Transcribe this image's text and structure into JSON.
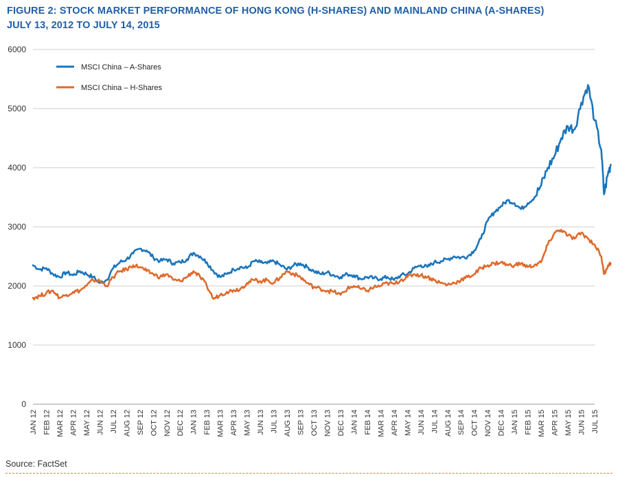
{
  "header": {
    "title_line1": "FIGURE 2: STOCK MARKET PERFORMANCE OF HONG KONG (H-SHARES) AND MAINLAND CHINA (A-SHARES)",
    "title_line2": "JULY 13, 2012 TO JULY 14, 2015"
  },
  "footer": {
    "source": "Source: FactSet"
  },
  "colors": {
    "a_shares": "#1b75bb",
    "h_shares": "#de6b2b",
    "grid": "#cccccc",
    "title": "#1f5fa6"
  },
  "chart_data": {
    "type": "line",
    "title": "FIGURE 2: STOCK MARKET PERFORMANCE OF HONG KONG (H-SHARES) AND MAINLAND CHINA (A-SHARES)",
    "subtitle": "JULY 13, 2012 TO JULY 14, 2015",
    "xlabel": "",
    "ylabel": "",
    "ylim": [
      0,
      6000
    ],
    "yticks": [
      0,
      1000,
      2000,
      3000,
      4000,
      5000,
      6000
    ],
    "grid": true,
    "legend_position": "top-left",
    "categories": [
      "JAN 12",
      "FEB 12",
      "MAR 12",
      "APR 12",
      "MAY 12",
      "JUN 12",
      "JUL 12",
      "AUG 12",
      "SEP 12",
      "OCT 12",
      "NOV 12",
      "DEC 12",
      "JAN 13",
      "FEB 13",
      "MAR 13",
      "APR 13",
      "MAY 13",
      "JUN 13",
      "JUL 13",
      "AUG 13",
      "SEP 13",
      "OCT 13",
      "NOV 13",
      "DEC 13",
      "JAN 14",
      "FEB 14",
      "MAR 14",
      "APR 14",
      "MAY 14",
      "JUN 14",
      "JUL 14",
      "AUG 14",
      "SEP 14",
      "OCT 14",
      "NOV 14",
      "DEC 14",
      "JAN 15",
      "FEB 15",
      "MAR 15",
      "APR 15",
      "MAY 15",
      "JUN 15",
      "JUL 15"
    ],
    "series": [
      {
        "name": "MSCI China – A-Shares",
        "color": "#1b75bb",
        "points": [
          [
            0,
            2350
          ],
          [
            0.5,
            2280
          ],
          [
            1,
            2300
          ],
          [
            1.5,
            2200
          ],
          [
            2,
            2150
          ],
          [
            2.5,
            2230
          ],
          [
            3,
            2180
          ],
          [
            3.5,
            2250
          ],
          [
            4,
            2200
          ],
          [
            4.5,
            2150
          ],
          [
            5,
            2050
          ],
          [
            5.5,
            2100
          ],
          [
            6,
            2300
          ],
          [
            6.5,
            2400
          ],
          [
            7,
            2450
          ],
          [
            7.5,
            2550
          ],
          [
            8,
            2630
          ],
          [
            8.5,
            2600
          ],
          [
            9,
            2480
          ],
          [
            9.5,
            2420
          ],
          [
            10,
            2450
          ],
          [
            10.5,
            2380
          ],
          [
            11,
            2400
          ],
          [
            11.5,
            2450
          ],
          [
            12,
            2560
          ],
          [
            12.5,
            2500
          ],
          [
            13,
            2400
          ],
          [
            13.5,
            2250
          ],
          [
            14,
            2150
          ],
          [
            14.5,
            2200
          ],
          [
            15,
            2280
          ],
          [
            15.5,
            2320
          ],
          [
            16,
            2300
          ],
          [
            16.5,
            2420
          ],
          [
            17,
            2400
          ],
          [
            17.5,
            2380
          ],
          [
            18,
            2420
          ],
          [
            18.5,
            2350
          ],
          [
            19,
            2280
          ],
          [
            19.5,
            2350
          ],
          [
            20,
            2380
          ],
          [
            20.5,
            2320
          ],
          [
            21,
            2250
          ],
          [
            21.5,
            2200
          ],
          [
            22,
            2230
          ],
          [
            22.5,
            2180
          ],
          [
            23,
            2150
          ],
          [
            23.5,
            2200
          ],
          [
            24,
            2180
          ],
          [
            24.5,
            2120
          ],
          [
            25,
            2150
          ],
          [
            25.5,
            2130
          ],
          [
            26,
            2120
          ],
          [
            26.5,
            2150
          ],
          [
            27,
            2100
          ],
          [
            27.5,
            2180
          ],
          [
            28,
            2200
          ],
          [
            28.5,
            2300
          ],
          [
            29,
            2350
          ],
          [
            29.5,
            2320
          ],
          [
            30,
            2400
          ],
          [
            30.5,
            2420
          ],
          [
            31,
            2450
          ],
          [
            31.5,
            2500
          ],
          [
            32,
            2480
          ],
          [
            32.5,
            2500
          ],
          [
            33,
            2600
          ],
          [
            33.5,
            2800
          ],
          [
            34,
            3100
          ],
          [
            34.5,
            3250
          ],
          [
            35,
            3350
          ],
          [
            35.5,
            3450
          ],
          [
            36,
            3400
          ],
          [
            36.5,
            3300
          ],
          [
            37,
            3400
          ],
          [
            37.5,
            3500
          ],
          [
            38,
            3700
          ],
          [
            38.5,
            4000
          ],
          [
            39,
            4200
          ],
          [
            39.5,
            4500
          ],
          [
            40,
            4700
          ],
          [
            40.5,
            4650
          ],
          [
            41,
            5100
          ],
          [
            41.5,
            5400
          ],
          [
            42,
            4800
          ],
          [
            42.5,
            4300
          ],
          [
            42.7,
            3550
          ],
          [
            43,
            3900
          ],
          [
            43.2,
            4050
          ]
        ]
      },
      {
        "name": "MSCI China – H-Shares",
        "color": "#de6b2b",
        "points": [
          [
            0,
            1800
          ],
          [
            0.5,
            1830
          ],
          [
            1,
            1880
          ],
          [
            1.5,
            1920
          ],
          [
            2,
            1800
          ],
          [
            2.5,
            1850
          ],
          [
            3,
            1900
          ],
          [
            3.5,
            1920
          ],
          [
            4,
            2000
          ],
          [
            4.5,
            2100
          ],
          [
            5,
            2080
          ],
          [
            5.5,
            2000
          ],
          [
            6,
            2150
          ],
          [
            6.5,
            2250
          ],
          [
            7,
            2280
          ],
          [
            7.5,
            2350
          ],
          [
            8,
            2320
          ],
          [
            8.5,
            2250
          ],
          [
            9,
            2200
          ],
          [
            9.5,
            2150
          ],
          [
            10,
            2200
          ],
          [
            10.5,
            2100
          ],
          [
            11,
            2080
          ],
          [
            11.5,
            2150
          ],
          [
            12,
            2250
          ],
          [
            12.5,
            2150
          ],
          [
            13,
            2000
          ],
          [
            13.5,
            1780
          ],
          [
            14,
            1850
          ],
          [
            14.5,
            1900
          ],
          [
            15,
            1930
          ],
          [
            15.5,
            1950
          ],
          [
            16,
            2050
          ],
          [
            16.5,
            2100
          ],
          [
            17,
            2080
          ],
          [
            17.5,
            2100
          ],
          [
            18,
            2050
          ],
          [
            18.5,
            2150
          ],
          [
            19,
            2250
          ],
          [
            19.5,
            2200
          ],
          [
            20,
            2150
          ],
          [
            20.5,
            2050
          ],
          [
            21,
            1980
          ],
          [
            21.5,
            1950
          ],
          [
            22,
            1920
          ],
          [
            22.5,
            1900
          ],
          [
            23,
            1850
          ],
          [
            23.5,
            1950
          ],
          [
            24,
            2000
          ],
          [
            24.5,
            1950
          ],
          [
            25,
            1920
          ],
          [
            25.5,
            1980
          ],
          [
            26,
            2000
          ],
          [
            26.5,
            2050
          ],
          [
            27,
            2030
          ],
          [
            27.5,
            2100
          ],
          [
            28,
            2150
          ],
          [
            28.5,
            2200
          ],
          [
            29,
            2180
          ],
          [
            29.5,
            2150
          ],
          [
            30,
            2100
          ],
          [
            30.5,
            2050
          ],
          [
            31,
            2020
          ],
          [
            31.5,
            2050
          ],
          [
            32,
            2100
          ],
          [
            32.5,
            2150
          ],
          [
            33,
            2200
          ],
          [
            33.5,
            2300
          ],
          [
            34,
            2350
          ],
          [
            34.5,
            2380
          ],
          [
            35,
            2400
          ],
          [
            35.5,
            2350
          ],
          [
            36,
            2350
          ],
          [
            36.5,
            2380
          ],
          [
            37,
            2320
          ],
          [
            37.5,
            2350
          ],
          [
            38,
            2400
          ],
          [
            38.5,
            2700
          ],
          [
            39,
            2900
          ],
          [
            39.5,
            2950
          ],
          [
            40,
            2850
          ],
          [
            40.5,
            2800
          ],
          [
            41,
            2900
          ],
          [
            41.5,
            2800
          ],
          [
            42,
            2700
          ],
          [
            42.5,
            2500
          ],
          [
            42.7,
            2200
          ],
          [
            43,
            2350
          ],
          [
            43.2,
            2380
          ]
        ]
      }
    ]
  }
}
